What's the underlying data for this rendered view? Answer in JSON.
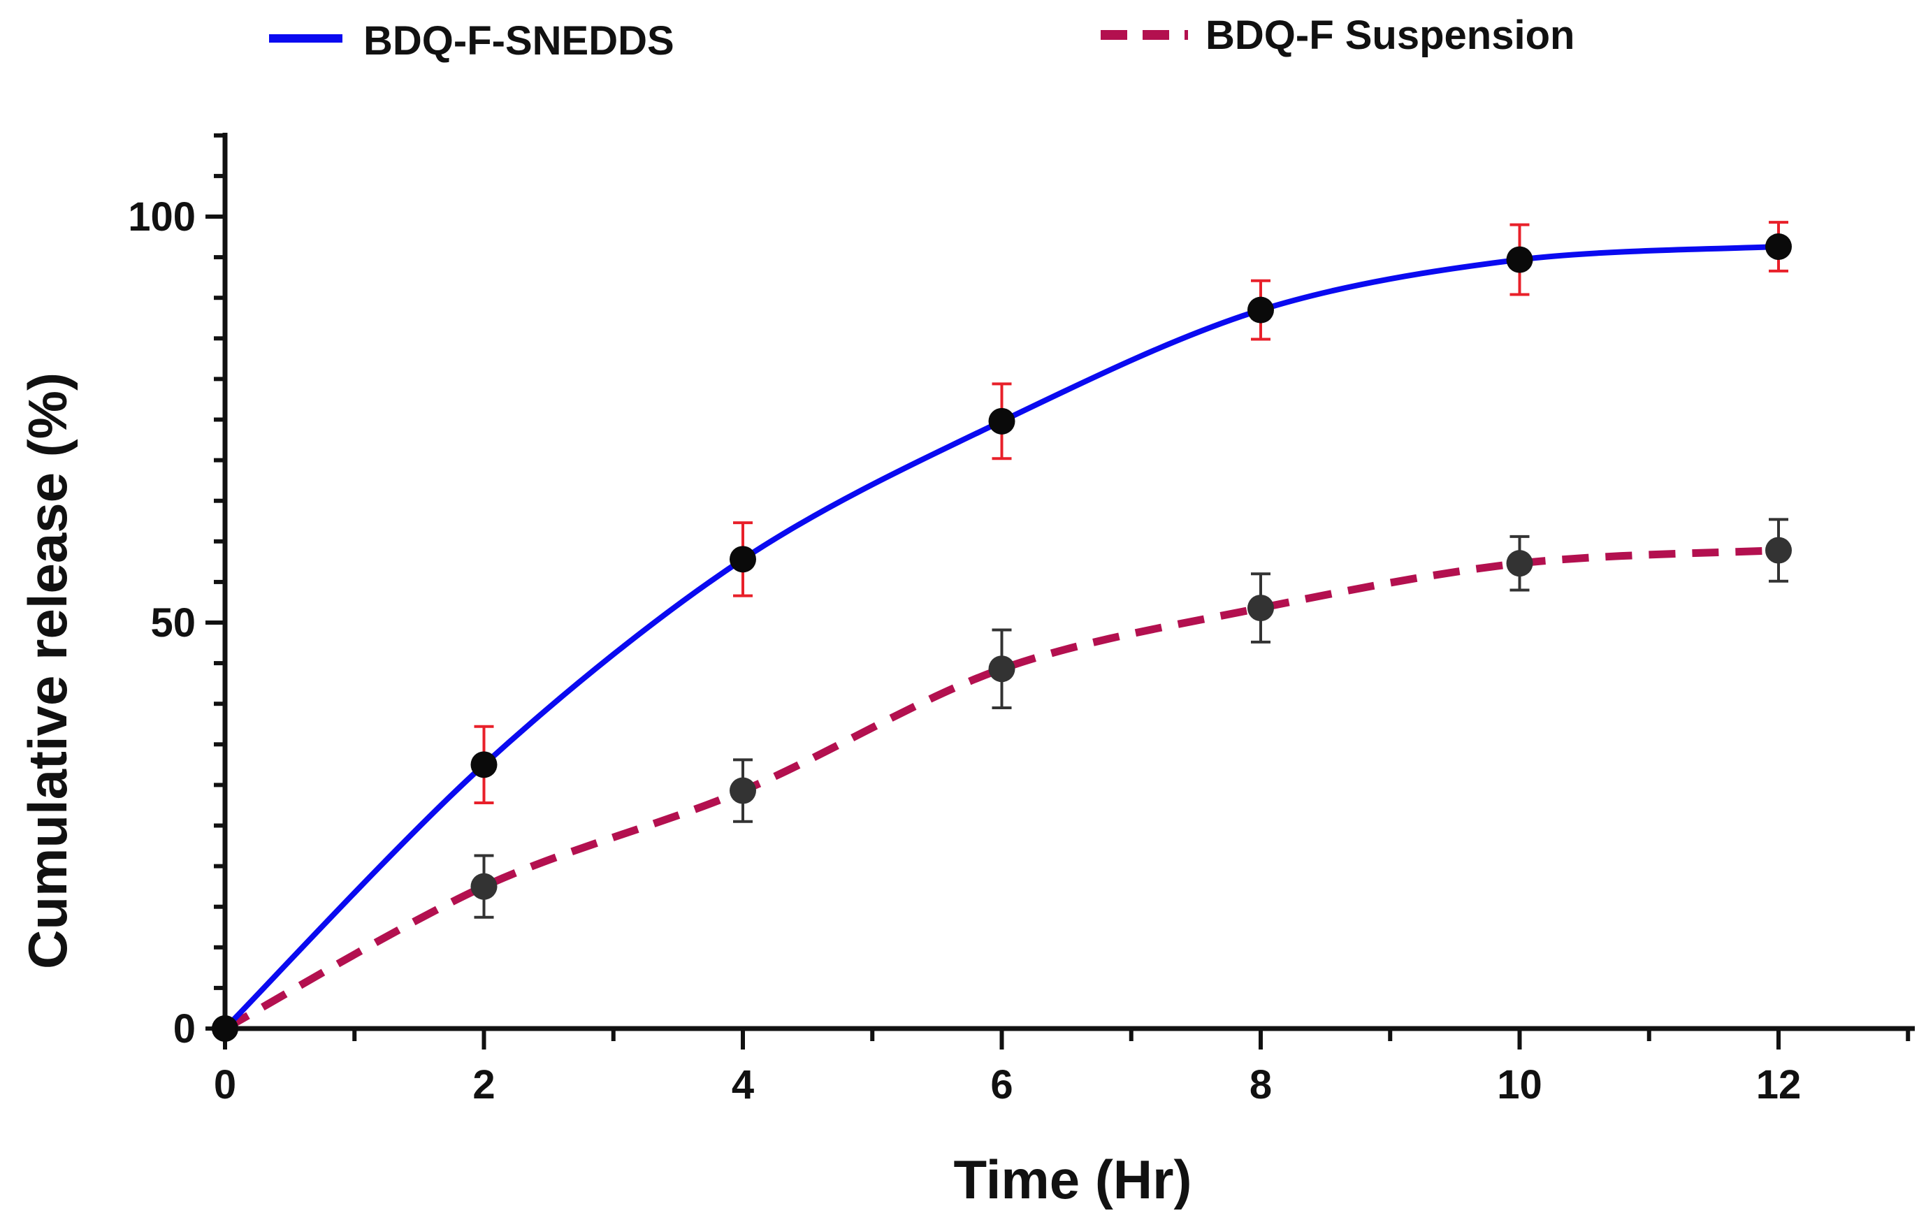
{
  "chart_data": {
    "type": "line",
    "title": "",
    "xlabel": "Time (Hr)",
    "ylabel": "Cumulative release (%)",
    "x": [
      0,
      2,
      4,
      6,
      8,
      10,
      12
    ],
    "xlim": [
      0,
      13
    ],
    "ylim": [
      0,
      110
    ],
    "x_ticks": [
      0,
      2,
      4,
      6,
      8,
      10,
      12
    ],
    "x_tick_labels": [
      "0",
      "2",
      "4",
      "6",
      "8",
      "10",
      "12"
    ],
    "y_ticks": [
      0,
      50,
      100
    ],
    "y_tick_labels": [
      "0",
      "50",
      "100"
    ],
    "y_minor_step": 5,
    "x_minor_step": 1,
    "grid": false,
    "legend_position": "top",
    "series": [
      {
        "name": "BDQ-F-SNEDDS",
        "values": [
          0,
          32.5,
          57.8,
          74.8,
          88.5,
          94.7,
          96.3
        ],
        "errors": [
          0,
          4.7,
          4.5,
          4.6,
          3.6,
          4.3,
          3.0
        ],
        "line_color": "#0a0af0",
        "line_style": "solid",
        "marker_color": "#0a0a0a",
        "error_color": "#e8202a"
      },
      {
        "name": "BDQ-F Suspension",
        "values": [
          0,
          17.5,
          29.3,
          44.3,
          51.8,
          57.3,
          58.9
        ],
        "errors": [
          0,
          3.8,
          3.8,
          4.8,
          4.2,
          3.3,
          3.8
        ],
        "line_color": "#b3104f",
        "line_style": "dashed",
        "marker_color": "#333333",
        "error_color": "#333333"
      }
    ]
  }
}
